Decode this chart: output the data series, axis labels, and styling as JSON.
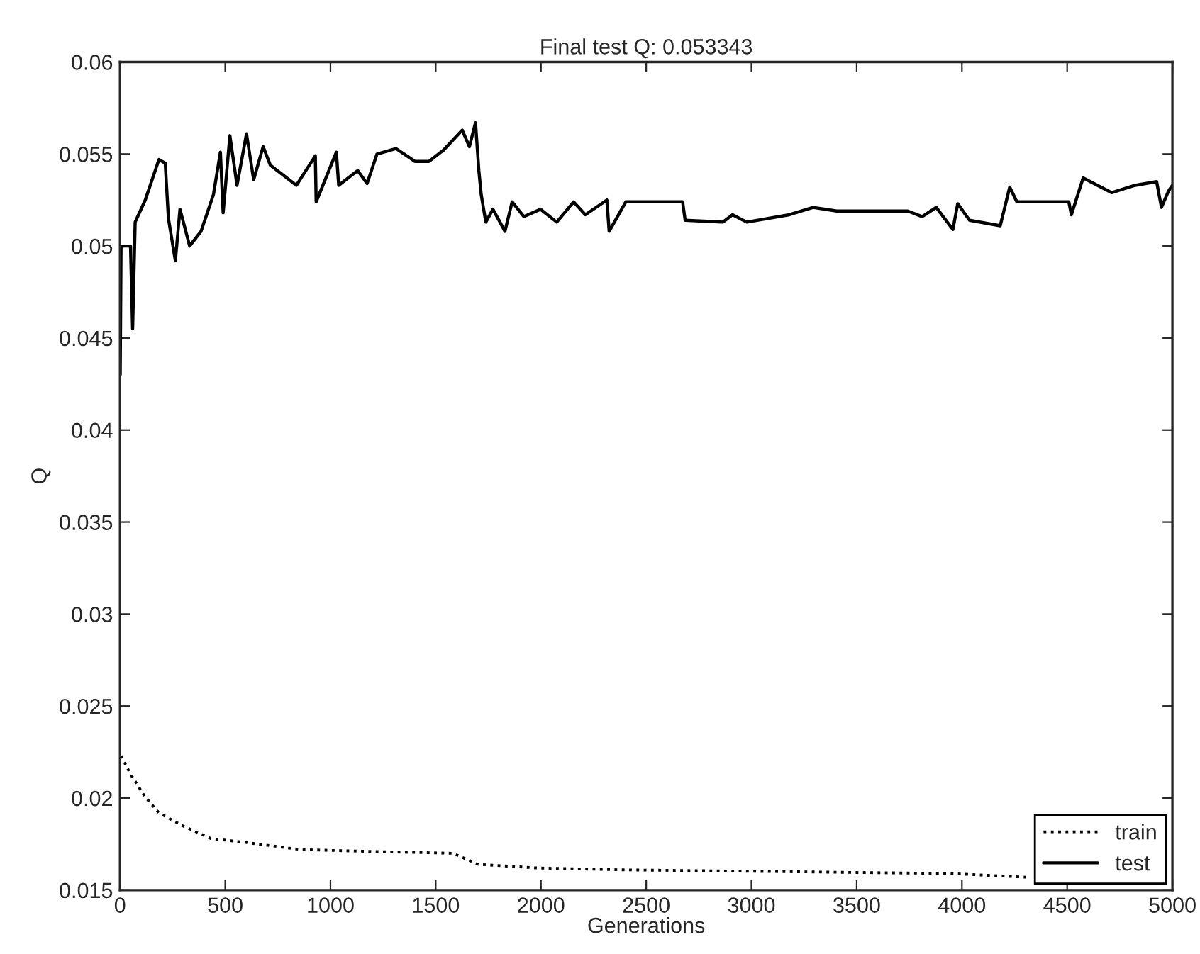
{
  "chart_data": {
    "type": "line",
    "title": "Final test Q: 0.053343",
    "xlabel": "Generations",
    "ylabel": "Q",
    "xlim": [
      0,
      5000
    ],
    "xticks": [
      0,
      500,
      1000,
      1500,
      2000,
      2500,
      3000,
      3500,
      4000,
      4500,
      5000
    ],
    "ylim": [
      0.015,
      0.06
    ],
    "yticks": [
      0.015,
      0.02,
      0.025,
      0.03,
      0.035,
      0.04,
      0.045,
      0.05,
      0.055,
      0.06
    ],
    "grid": false,
    "legend": "bottom right",
    "series": [
      {
        "name": "train",
        "color": "#000000",
        "line_style": "dotted",
        "x": [
          5,
          50,
          117,
          185,
          297,
          432,
          590,
          860,
          1198,
          1581,
          1703,
          1986,
          2392,
          3946,
          4304
        ],
        "values": [
          0.0223,
          0.0213,
          0.0201,
          0.0192,
          0.0185,
          0.0178,
          0.0176,
          0.0172,
          0.0171,
          0.017,
          0.0164,
          0.0162,
          0.0161,
          0.0159,
          0.0157
        ]
      },
      {
        "name": "test",
        "color": "#000000",
        "line_style": "solid",
        "x": [
          1,
          5,
          30,
          50,
          60,
          72,
          120,
          185,
          215,
          230,
          263,
          285,
          331,
          385,
          444,
          477,
          490,
          522,
          556,
          601,
          635,
          680,
          714,
          838,
          928,
          932,
          1028,
          1039,
          1129,
          1174,
          1221,
          1311,
          1401,
          1468,
          1536,
          1626,
          1660,
          1689,
          1705,
          1716,
          1738,
          1772,
          1829,
          1863,
          1919,
          1998,
          2075,
          2155,
          2211,
          2313,
          2324,
          2403,
          2550,
          2673,
          2685,
          2865,
          2910,
          2978,
          3180,
          3293,
          3405,
          3630,
          3743,
          3811,
          3878,
          3957,
          3980,
          4036,
          4182,
          4227,
          4261,
          4508,
          4520,
          4576,
          4711,
          4823,
          4925,
          4948,
          4982,
          5000
        ],
        "values": [
          0.043,
          0.05,
          0.05,
          0.05,
          0.0455,
          0.0513,
          0.0525,
          0.0547,
          0.0545,
          0.0515,
          0.0492,
          0.052,
          0.05,
          0.0508,
          0.0528,
          0.0551,
          0.0518,
          0.056,
          0.0533,
          0.0561,
          0.0536,
          0.0554,
          0.0544,
          0.0533,
          0.0549,
          0.0524,
          0.0551,
          0.0533,
          0.0541,
          0.0534,
          0.055,
          0.0553,
          0.0546,
          0.0546,
          0.0552,
          0.0563,
          0.0554,
          0.0567,
          0.0541,
          0.0528,
          0.0513,
          0.052,
          0.0508,
          0.0524,
          0.0516,
          0.052,
          0.0513,
          0.0524,
          0.0517,
          0.0525,
          0.0508,
          0.0524,
          0.0524,
          0.0524,
          0.0514,
          0.0513,
          0.0517,
          0.0513,
          0.0517,
          0.0521,
          0.0519,
          0.0519,
          0.0519,
          0.0516,
          0.0521,
          0.0509,
          0.0523,
          0.0514,
          0.0511,
          0.0532,
          0.0524,
          0.0524,
          0.0517,
          0.0537,
          0.0529,
          0.0533,
          0.0535,
          0.0521,
          0.053,
          0.0533
        ]
      }
    ]
  }
}
